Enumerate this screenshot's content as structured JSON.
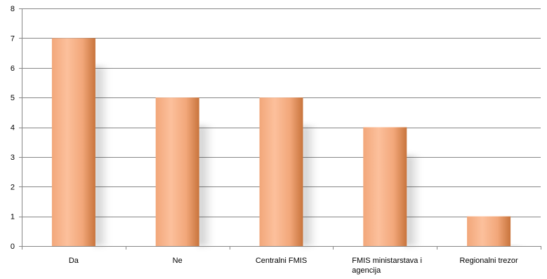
{
  "chart_data": {
    "type": "bar",
    "categories": [
      "Da",
      "Ne",
      "Centralni FMIS",
      "FMIS ministarstava i agencija",
      "Regionalni trezor"
    ],
    "category_lines": [
      [
        "Da"
      ],
      [
        "Ne"
      ],
      [
        "Centralni FMIS"
      ],
      [
        "FMIS ministarstava i",
        "agencija"
      ],
      [
        "Regionalni trezor"
      ]
    ],
    "values": [
      7,
      5,
      5,
      4,
      1
    ],
    "title": "",
    "xlabel": "",
    "ylabel": "",
    "ylim": [
      0,
      8
    ],
    "yticks": [
      0,
      1,
      2,
      3,
      4,
      5,
      6,
      7,
      8
    ],
    "grid": true,
    "legend": "none",
    "colors": {
      "bar_light": "#FCC09C",
      "bar_mid": "#F2A77A",
      "bar_dark": "#C8743C",
      "grid": "#878787"
    }
  }
}
